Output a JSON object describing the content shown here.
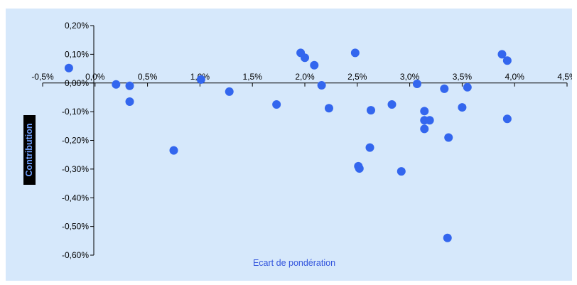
{
  "chart_data": {
    "type": "scatter",
    "title": "",
    "xlabel": "Ecart de pondération",
    "ylabel": "Contribution",
    "xlim": [
      -0.5,
      4.5
    ],
    "ylim": [
      -0.6,
      0.2
    ],
    "x_ticks": [
      "-0,5%",
      "0,0%",
      "0,5%",
      "1,0%",
      "1,5%",
      "2,0%",
      "2,5%",
      "3,0%",
      "3,5%",
      "4,0%",
      "4,5%"
    ],
    "y_ticks": [
      "0,20%",
      "0,10%",
      "0,00%",
      "-0,10%",
      "-0,20%",
      "-0,30%",
      "-0,40%",
      "-0,50%",
      "-0,60%"
    ],
    "grid": false,
    "point_color": "#3366ee",
    "axis_color": "#000000",
    "background_color": "#d6e8fb",
    "series": [
      {
        "points": [
          [
            -0.25,
            0.052
          ],
          [
            0.2,
            -0.005
          ],
          [
            0.33,
            -0.01
          ],
          [
            0.33,
            -0.065
          ],
          [
            0.75,
            -0.235
          ],
          [
            1.01,
            0.012
          ],
          [
            1.28,
            -0.03
          ],
          [
            1.73,
            -0.075
          ],
          [
            1.96,
            0.105
          ],
          [
            2.0,
            0.088
          ],
          [
            2.09,
            0.062
          ],
          [
            2.16,
            -0.008
          ],
          [
            2.23,
            -0.088
          ],
          [
            2.48,
            0.105
          ],
          [
            2.51,
            -0.29
          ],
          [
            2.52,
            -0.298
          ],
          [
            2.62,
            -0.225
          ],
          [
            2.63,
            -0.095
          ],
          [
            2.83,
            -0.075
          ],
          [
            2.92,
            -0.308
          ],
          [
            3.07,
            -0.003
          ],
          [
            3.14,
            -0.098
          ],
          [
            3.14,
            -0.13
          ],
          [
            3.14,
            -0.16
          ],
          [
            3.19,
            -0.13
          ],
          [
            3.33,
            -0.02
          ],
          [
            3.36,
            -0.54
          ],
          [
            3.37,
            -0.19
          ],
          [
            3.5,
            -0.085
          ],
          [
            3.55,
            -0.015
          ],
          [
            3.88,
            0.1
          ],
          [
            3.93,
            0.078
          ],
          [
            3.93,
            -0.125
          ]
        ]
      }
    ]
  }
}
